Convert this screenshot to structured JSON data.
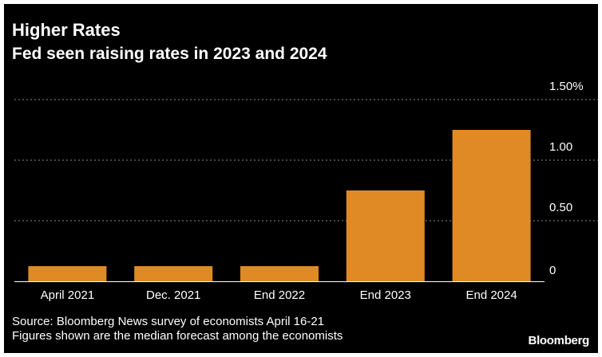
{
  "header": {
    "title": "Higher Rates",
    "subtitle": "Fed seen raising rates in 2023 and 2024"
  },
  "footer": {
    "source": "Source: Bloomberg News survey of economists April 16-21",
    "note": "Figures shown are the median forecast among the economists",
    "brand": "Bloomberg"
  },
  "colors": {
    "background": "#000000",
    "bar": "#E08A26",
    "grid": "#8a8a8a",
    "text": "#ffffff"
  },
  "chart_data": {
    "type": "bar",
    "title": "Higher Rates",
    "subtitle": "Fed seen raising rates in 2023 and 2024",
    "categories": [
      "April 2021",
      "Dec. 2021",
      "End 2022",
      "End 2023",
      "End 2024"
    ],
    "values": [
      0.125,
      0.125,
      0.125,
      0.75,
      1.25
    ],
    "ylim": [
      0,
      1.5
    ],
    "yticks": [
      0,
      0.5,
      1.0,
      1.5
    ],
    "ytick_labels": [
      "0",
      "0.50",
      "1.00",
      "1.50%"
    ],
    "xlabel": "",
    "ylabel": "",
    "grid": true,
    "grid_style": "dotted",
    "y_axis_side": "right",
    "legend": "none"
  }
}
